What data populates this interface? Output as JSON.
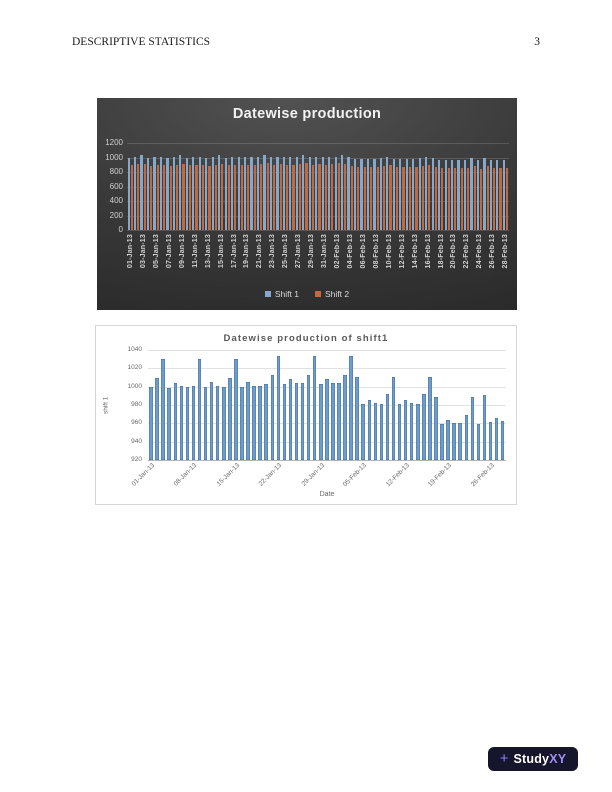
{
  "header": {
    "running_head": "DESCRIPTIVE STATISTICS",
    "page_number": "3"
  },
  "watermark": {
    "plus": "+",
    "brand_white": "Study",
    "brand_accent": "XY",
    "bg_color": "#15152b",
    "accent_color": "#9f8df8"
  },
  "chart_data": [
    {
      "type": "bar",
      "title": "Datewise production",
      "background": "dark",
      "legend_position": "bottom",
      "grid": true,
      "ylim": [
        0,
        1200
      ],
      "yticks": [
        0,
        200,
        400,
        600,
        800,
        1000,
        1200
      ],
      "x_tick_every": 2,
      "categories": [
        "01-Jan-13",
        "02-Jan-13",
        "03-Jan-13",
        "04-Jan-13",
        "05-Jan-13",
        "06-Jan-13",
        "07-Jan-13",
        "08-Jan-13",
        "09-Jan-13",
        "10-Jan-13",
        "11-Jan-13",
        "12-Jan-13",
        "13-Jan-13",
        "14-Jan-13",
        "15-Jan-13",
        "16-Jan-13",
        "17-Jan-13",
        "18-Jan-13",
        "19-Jan-13",
        "20-Jan-13",
        "21-Jan-13",
        "22-Jan-13",
        "23-Jan-13",
        "24-Jan-13",
        "25-Jan-13",
        "26-Jan-13",
        "27-Jan-13",
        "28-Jan-13",
        "29-Jan-13",
        "30-Jan-13",
        "31-Jan-13",
        "01-Feb-13",
        "02-Feb-13",
        "03-Feb-13",
        "04-Feb-13",
        "05-Feb-13",
        "06-Feb-13",
        "07-Feb-13",
        "08-Feb-13",
        "09-Feb-13",
        "10-Feb-13",
        "11-Feb-13",
        "12-Feb-13",
        "13-Feb-13",
        "14-Feb-13",
        "15-Feb-13",
        "16-Feb-13",
        "17-Feb-13",
        "18-Feb-13",
        "19-Feb-13",
        "20-Feb-13",
        "21-Feb-13",
        "22-Feb-13",
        "23-Feb-13",
        "24-Feb-13",
        "25-Feb-13",
        "26-Feb-13",
        "27-Feb-13",
        "28-Feb-13"
      ],
      "series": [
        {
          "name": "Shift 1",
          "color": "#84a9cc",
          "values": [
            1000,
            1010,
            1030,
            999,
            1004,
            1001,
            1000,
            1001,
            1030,
            1000,
            1005,
            1001,
            1000,
            1010,
            1030,
            1000,
            1005,
            1001,
            1001,
            1003,
            1013,
            1034,
            1003,
            1008,
            1004,
            1004,
            1013,
            1034,
            1003,
            1008,
            1004,
            1004,
            1013,
            1034,
            1011,
            981,
            986,
            982,
            981,
            992,
            1011,
            981,
            986,
            982,
            981,
            992,
            1011,
            989,
            959,
            964,
            960,
            960,
            969,
            989,
            959,
            991,
            961,
            966,
            963
          ]
        },
        {
          "name": "Shift 2",
          "color": "#c2693f",
          "values": [
            900,
            905,
            915,
            888,
            895,
            890,
            888,
            895,
            915,
            890,
            898,
            892,
            888,
            900,
            915,
            890,
            898,
            892,
            890,
            900,
            912,
            918,
            898,
            905,
            898,
            896,
            908,
            918,
            898,
            905,
            900,
            915,
            918,
            910,
            878,
            868,
            872,
            866,
            864,
            878,
            902,
            868,
            872,
            866,
            864,
            878,
            898,
            872,
            852,
            858,
            852,
            850,
            862,
            878,
            848,
            882,
            852,
            858,
            855
          ]
        }
      ]
    },
    {
      "type": "bar",
      "title": "Datewise production of shift1",
      "xlabel": "Date",
      "ylabel": "shift 1",
      "bar_color": "#6e9dca",
      "grid": true,
      "ylim": [
        920,
        1040
      ],
      "yticks": [
        920,
        940,
        960,
        980,
        1000,
        1020,
        1040
      ],
      "x_tick_every": 7,
      "categories": [
        "01-Jan-13",
        "02-Jan-13",
        "03-Jan-13",
        "04-Jan-13",
        "05-Jan-13",
        "06-Jan-13",
        "07-Jan-13",
        "08-Jan-13",
        "09-Jan-13",
        "10-Jan-13",
        "11-Jan-13",
        "12-Jan-13",
        "13-Jan-13",
        "14-Jan-13",
        "15-Jan-13",
        "16-Jan-13",
        "17-Jan-13",
        "18-Jan-13",
        "19-Jan-13",
        "20-Jan-13",
        "21-Jan-13",
        "22-Jan-13",
        "23-Jan-13",
        "24-Jan-13",
        "25-Jan-13",
        "26-Jan-13",
        "27-Jan-13",
        "28-Jan-13",
        "29-Jan-13",
        "30-Jan-13",
        "31-Jan-13",
        "01-Feb-13",
        "02-Feb-13",
        "03-Feb-13",
        "04-Feb-13",
        "05-Feb-13",
        "06-Feb-13",
        "07-Feb-13",
        "08-Feb-13",
        "09-Feb-13",
        "10-Feb-13",
        "11-Feb-13",
        "12-Feb-13",
        "13-Feb-13",
        "14-Feb-13",
        "15-Feb-13",
        "16-Feb-13",
        "17-Feb-13",
        "18-Feb-13",
        "19-Feb-13",
        "20-Feb-13",
        "21-Feb-13",
        "22-Feb-13",
        "23-Feb-13",
        "24-Feb-13",
        "25-Feb-13",
        "26-Feb-13",
        "27-Feb-13",
        "28-Feb-13"
      ],
      "values": [
        1000,
        1010,
        1030,
        999,
        1004,
        1001,
        1000,
        1001,
        1030,
        1000,
        1005,
        1001,
        1000,
        1010,
        1030,
        1000,
        1005,
        1001,
        1001,
        1003,
        1013,
        1034,
        1003,
        1008,
        1004,
        1004,
        1013,
        1034,
        1003,
        1008,
        1004,
        1004,
        1013,
        1034,
        1011,
        981,
        986,
        982,
        981,
        992,
        1011,
        981,
        986,
        982,
        981,
        992,
        1011,
        989,
        959,
        964,
        960,
        960,
        969,
        989,
        959,
        991,
        961,
        966,
        963
      ]
    }
  ]
}
